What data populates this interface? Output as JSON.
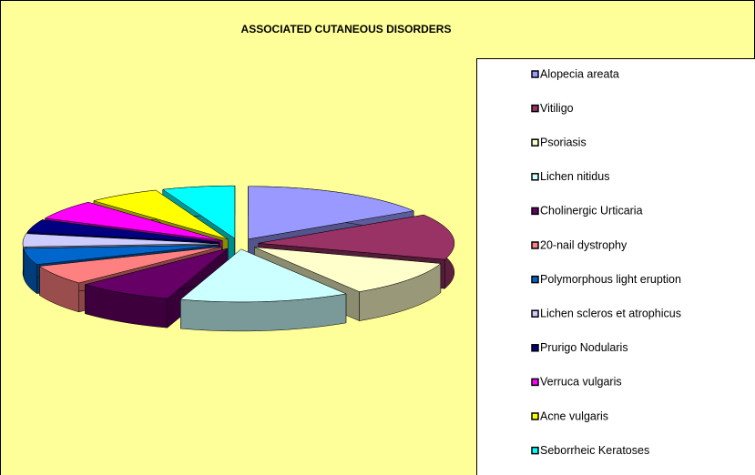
{
  "chart_data": {
    "type": "pie",
    "title": "ASSOCIATED CUTANEOUS DISORDERS",
    "categories": [
      "Alopecia areata",
      "Vitiligo",
      "Psoriasis",
      "Lichen nitidus",
      "Cholinergic Urticaria",
      "20-nail dystrophy",
      "Polymorphous light eruption",
      "Lichen scleros et atrophicus",
      "Prurigo Nodularis",
      "Verruca vulgaris",
      "Acne vulgaris",
      "Seborrheic Keratoses"
    ],
    "values": [
      16,
      14,
      11,
      14,
      8,
      6,
      5,
      4,
      4,
      6,
      6,
      6
    ],
    "colors": [
      "#9999ff",
      "#993366",
      "#ffffcc",
      "#ccffff",
      "#660066",
      "#ff8080",
      "#0066cc",
      "#ccccff",
      "#000080",
      "#ff00ff",
      "#ffff00",
      "#00ffff"
    ],
    "legend": "right"
  }
}
